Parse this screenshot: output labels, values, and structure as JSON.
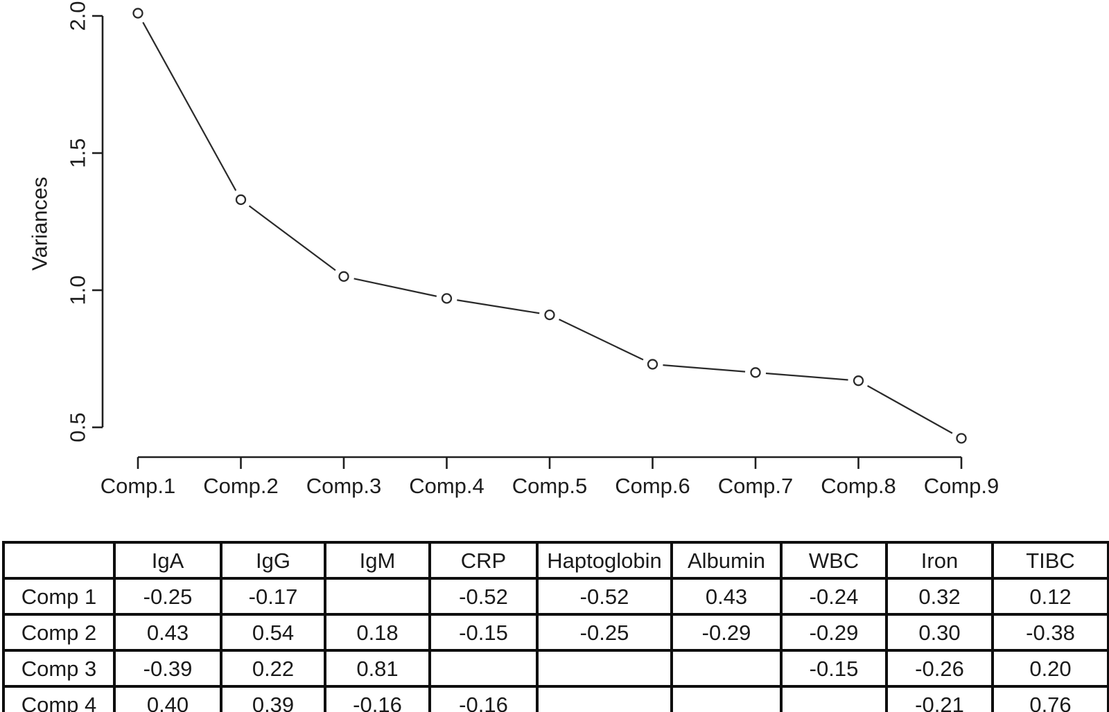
{
  "figure": {
    "background": "#ffffff",
    "description": "Scree plot of principal components above a table of component loadings"
  },
  "chart_data": {
    "type": "line",
    "title": "",
    "xlabel": "",
    "ylabel": "Variances",
    "categories": [
      "Comp.1",
      "Comp.2",
      "Comp.3",
      "Comp.4",
      "Comp.5",
      "Comp.6",
      "Comp.7",
      "Comp.8",
      "Comp.9"
    ],
    "values": [
      2.01,
      1.33,
      1.05,
      0.97,
      0.91,
      0.73,
      0.7,
      0.67,
      0.46
    ],
    "ytick_labels": [
      "2.0",
      "1.5",
      "1.0",
      "0.5"
    ],
    "ytick_values": [
      2.0,
      1.5,
      1.0,
      0.5
    ],
    "ylim": [
      0.45,
      2.01
    ],
    "marker": "open-circle",
    "line_style": "solid-with-point-gaps",
    "grid": false,
    "legend": "none"
  },
  "table": {
    "columns": [
      "",
      "IgA",
      "IgG",
      "IgM",
      "CRP",
      "Haptoglobin",
      "Albumin",
      "WBC",
      "Iron",
      "TIBC"
    ],
    "rows": [
      [
        "Comp 1",
        "-0.25",
        "-0.17",
        "",
        "-0.52",
        "-0.52",
        "0.43",
        "-0.24",
        "0.32",
        "0.12"
      ],
      [
        "Comp 2",
        "0.43",
        "0.54",
        "0.18",
        "-0.15",
        "-0.25",
        "-0.29",
        "-0.29",
        "0.30",
        "-0.38"
      ],
      [
        "Comp 3",
        "-0.39",
        "0.22",
        "0.81",
        "",
        "",
        "",
        "-0.15",
        "-0.26",
        "0.20"
      ],
      [
        "Comp 4",
        "0.40",
        "0.39",
        "-0.16",
        "-0.16",
        "",
        "",
        "",
        "-0.21",
        "0.76"
      ]
    ]
  },
  "colors": {
    "axis": "#1f1f1f",
    "series_line": "#2a2a2a",
    "marker_stroke": "#2a2a2a",
    "marker_fill": "#ffffff",
    "table_border": "#0d0d0d",
    "text": "#1a1a1a",
    "background": "#ffffff"
  }
}
